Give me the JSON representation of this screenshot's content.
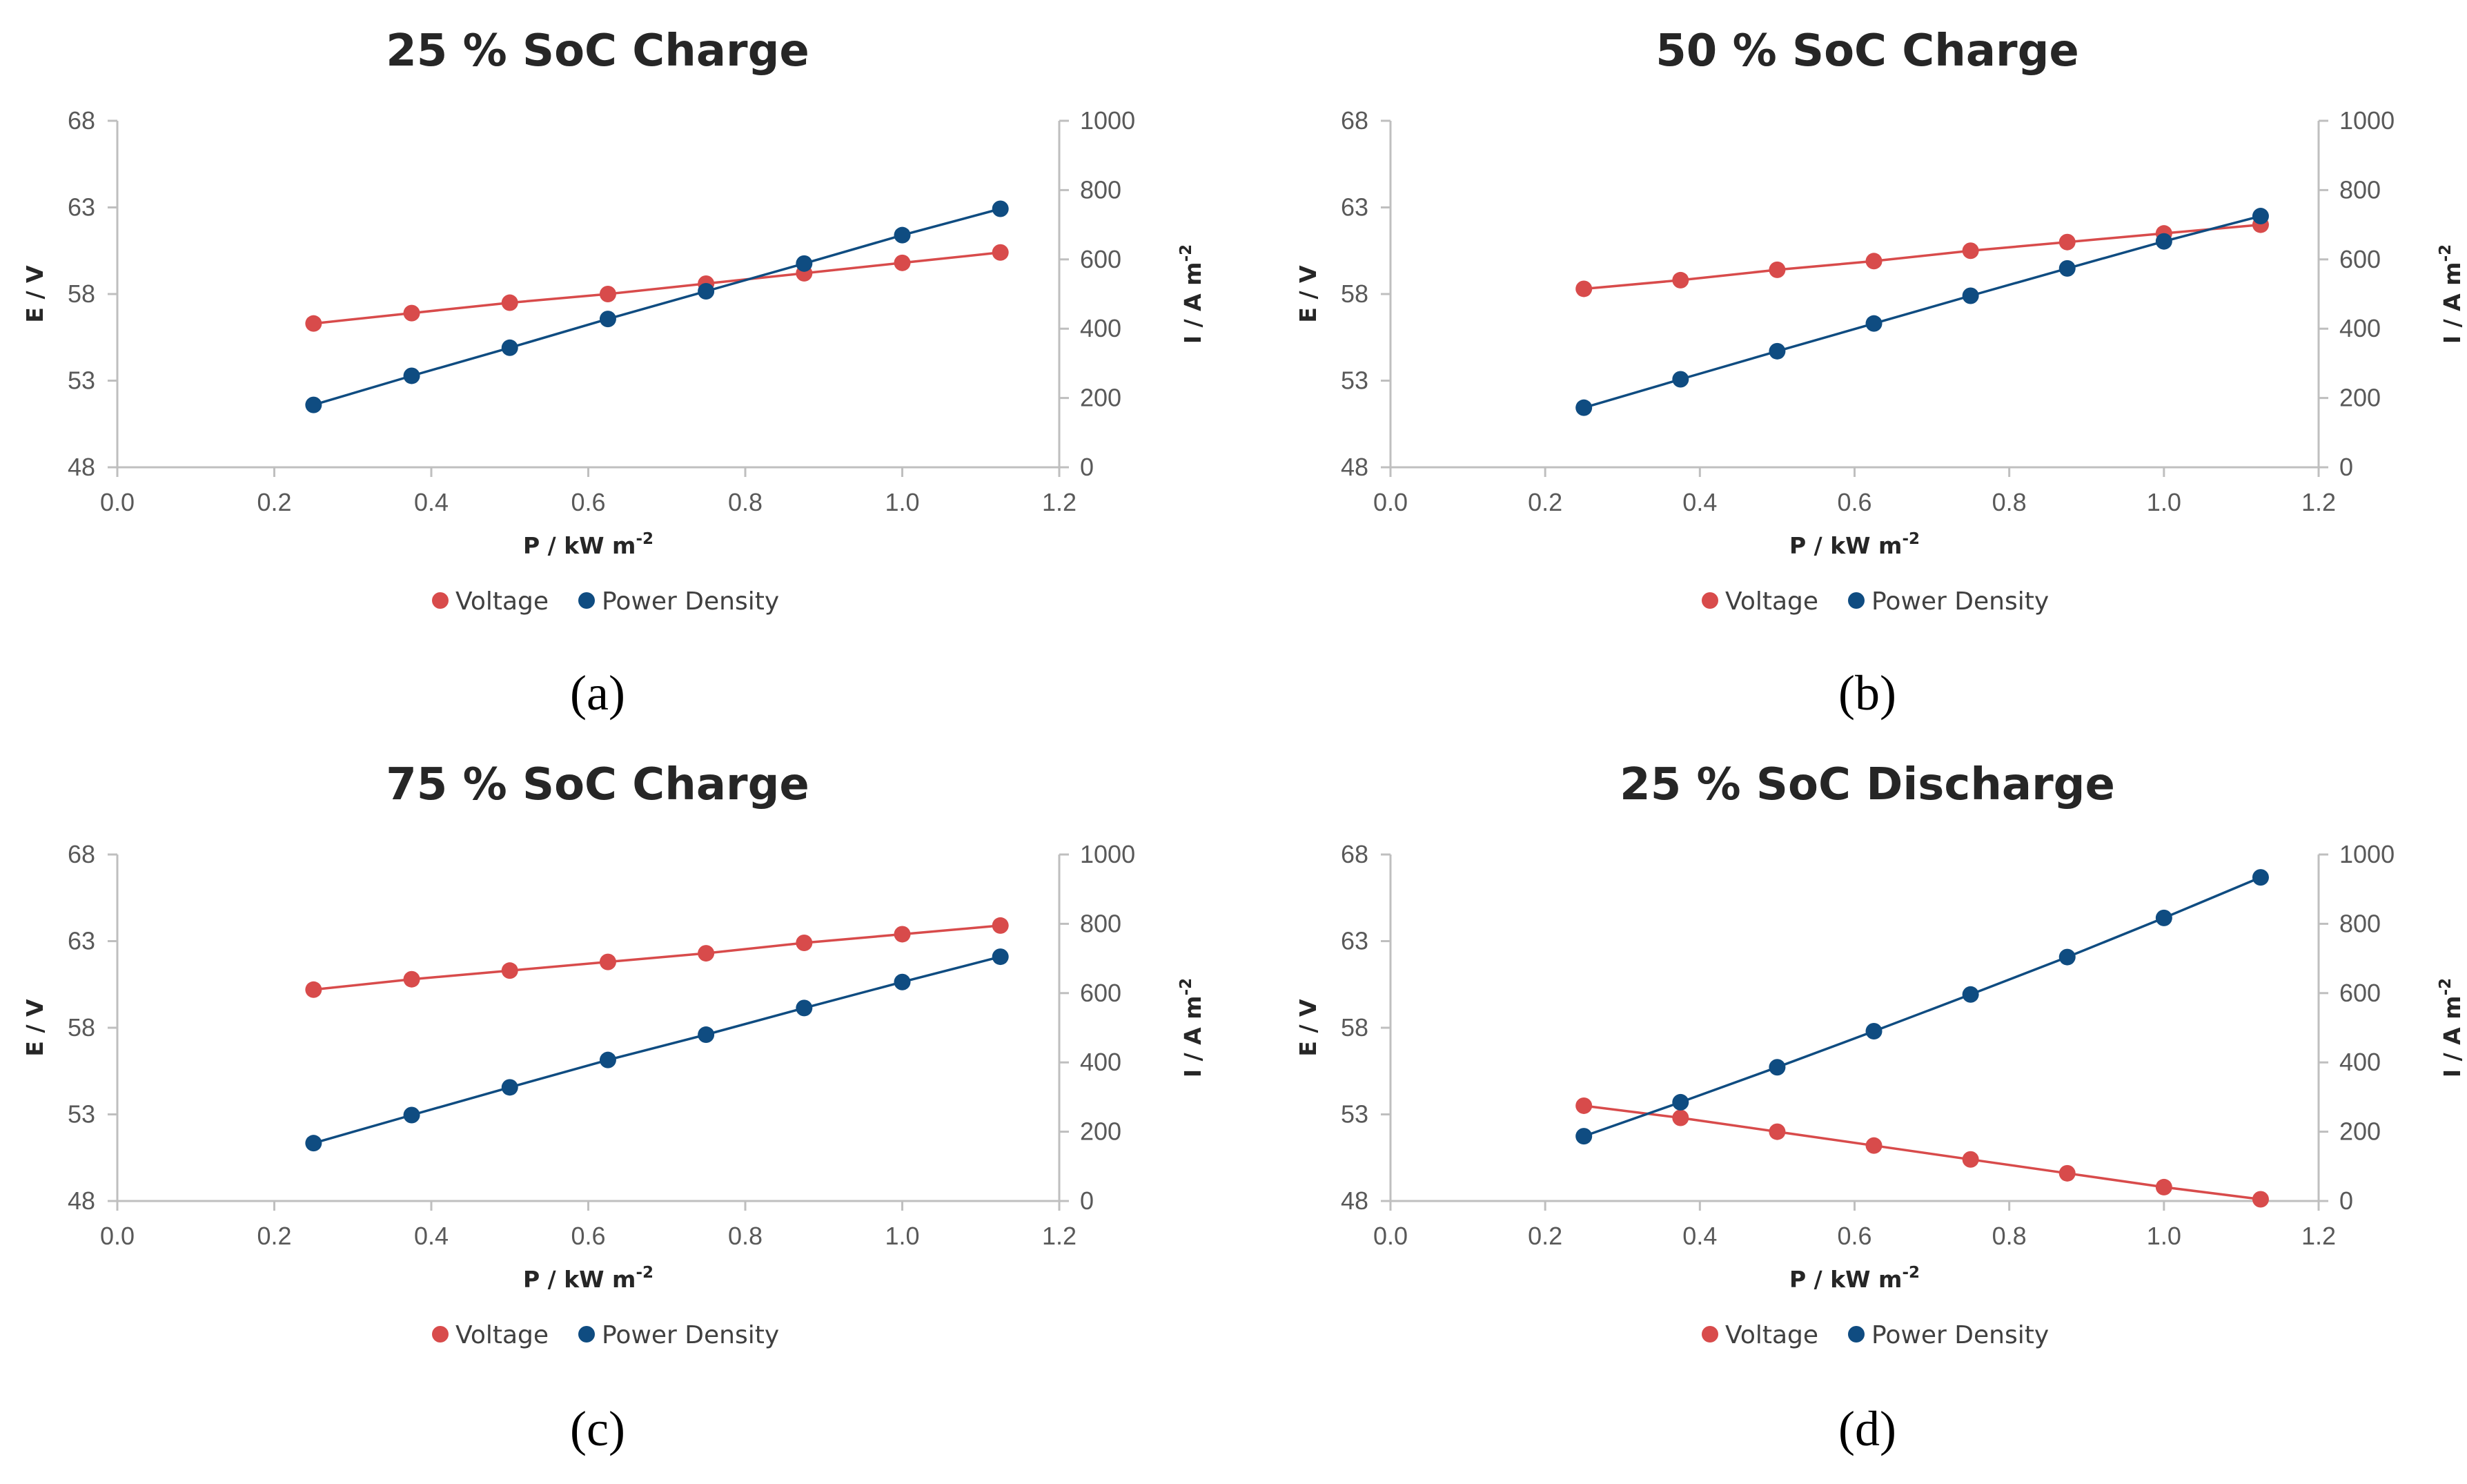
{
  "chart_data": [
    {
      "type": "line",
      "title": "25 % SoC Charge",
      "caption": "(a)",
      "xlabel": "P / kW m",
      "xlabel_sup": "-2",
      "ylabel": "E / V",
      "y2label": "I / A m",
      "y2label_sup": "-2",
      "xlim": [
        0,
        1.2
      ],
      "ylim": [
        48,
        68
      ],
      "y2lim": [
        0,
        1000
      ],
      "xticks": [
        "0.0",
        "0.2",
        "0.4",
        "0.6",
        "0.8",
        "1.0",
        "1.2"
      ],
      "yticks": [
        "48",
        "53",
        "58",
        "63",
        "68"
      ],
      "y2ticks": [
        "0",
        "200",
        "400",
        "600",
        "800",
        "1000"
      ],
      "x": [
        0.25,
        0.375,
        0.5,
        0.625,
        0.75,
        0.875,
        1.0,
        1.125
      ],
      "series": [
        {
          "name": "Voltage",
          "axis": "left",
          "color": "#d84b4b",
          "values": [
            56.3,
            56.9,
            57.5,
            58.0,
            58.6,
            59.2,
            59.8,
            60.4
          ]
        },
        {
          "name": "Power Density",
          "axis": "right",
          "color": "#0f4c81",
          "values": [
            180,
            264,
            345,
            428,
            508,
            588,
            670,
            746
          ]
        }
      ]
    },
    {
      "type": "line",
      "title": "50 % SoC Charge",
      "caption": "(b)",
      "xlabel": "P / kW m",
      "xlabel_sup": "-2",
      "ylabel": "E / V",
      "y2label": "I / A m",
      "y2label_sup": "-2",
      "xlim": [
        0,
        1.2
      ],
      "ylim": [
        48,
        68
      ],
      "y2lim": [
        0,
        1000
      ],
      "xticks": [
        "0.0",
        "0.2",
        "0.4",
        "0.6",
        "0.8",
        "1.0",
        "1.2"
      ],
      "yticks": [
        "48",
        "53",
        "58",
        "63",
        "68"
      ],
      "y2ticks": [
        "0",
        "200",
        "400",
        "600",
        "800",
        "1000"
      ],
      "x": [
        0.25,
        0.375,
        0.5,
        0.625,
        0.75,
        0.875,
        1.0,
        1.125
      ],
      "series": [
        {
          "name": "Voltage",
          "axis": "left",
          "color": "#d84b4b",
          "values": [
            58.3,
            58.8,
            59.4,
            59.9,
            60.5,
            61.0,
            61.5,
            62.0
          ]
        },
        {
          "name": "Power Density",
          "axis": "right",
          "color": "#0f4c81",
          "values": [
            172,
            254,
            335,
            415,
            495,
            574,
            652,
            725
          ]
        }
      ]
    },
    {
      "type": "line",
      "title": "75 % SoC Charge",
      "caption": "(c)",
      "xlabel": "P / kW m",
      "xlabel_sup": "-2",
      "ylabel": "E / V",
      "y2label": "I / A m",
      "y2label_sup": "-2",
      "xlim": [
        0,
        1.2
      ],
      "ylim": [
        48,
        68
      ],
      "y2lim": [
        0,
        1000
      ],
      "xticks": [
        "0.0",
        "0.2",
        "0.4",
        "0.6",
        "0.8",
        "1.0",
        "1.2"
      ],
      "yticks": [
        "48",
        "53",
        "58",
        "63",
        "68"
      ],
      "y2ticks": [
        "0",
        "200",
        "400",
        "600",
        "800",
        "1000"
      ],
      "x": [
        0.25,
        0.375,
        0.5,
        0.625,
        0.75,
        0.875,
        1.0,
        1.125
      ],
      "series": [
        {
          "name": "Voltage",
          "axis": "left",
          "color": "#d84b4b",
          "values": [
            60.2,
            60.8,
            61.3,
            61.8,
            62.3,
            62.9,
            63.4,
            63.9
          ]
        },
        {
          "name": "Power Density",
          "axis": "right",
          "color": "#0f4c81",
          "values": [
            167,
            248,
            328,
            407,
            480,
            557,
            632,
            705
          ]
        }
      ]
    },
    {
      "type": "line",
      "title": "25 % SoC Discharge",
      "caption": "(d)",
      "xlabel": "P / kW m",
      "xlabel_sup": "-2",
      "ylabel": "E / V",
      "y2label": "I / A m",
      "y2label_sup": "-2",
      "xlim": [
        0,
        1.2
      ],
      "ylim": [
        48,
        68
      ],
      "y2lim": [
        0,
        1000
      ],
      "xticks": [
        "0.0",
        "0.2",
        "0.4",
        "0.6",
        "0.8",
        "1.0",
        "1.2"
      ],
      "yticks": [
        "48",
        "53",
        "58",
        "63",
        "68"
      ],
      "y2ticks": [
        "0",
        "200",
        "400",
        "600",
        "800",
        "1000"
      ],
      "x": [
        0.25,
        0.375,
        0.5,
        0.625,
        0.75,
        0.875,
        1.0,
        1.125
      ],
      "series": [
        {
          "name": "Voltage",
          "axis": "left",
          "color": "#d84b4b",
          "values": [
            53.5,
            52.8,
            52.0,
            51.2,
            50.4,
            49.6,
            48.8,
            48.1
          ]
        },
        {
          "name": "Power Density",
          "axis": "right",
          "color": "#0f4c81",
          "values": [
            187,
            285,
            386,
            490,
            596,
            704,
            817,
            934
          ]
        }
      ]
    }
  ]
}
